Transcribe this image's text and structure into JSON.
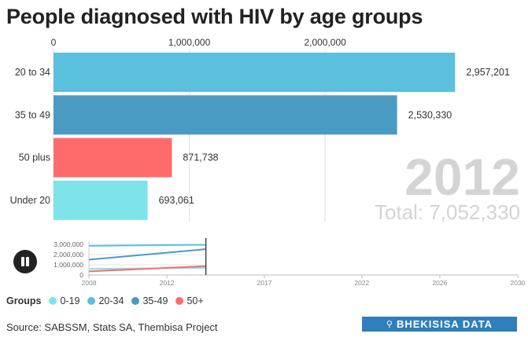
{
  "title": "People diagnosed with HIV by age groups",
  "chart_data": [
    {
      "type": "bar",
      "orientation": "horizontal",
      "year": "2012",
      "total_label": "Total: 7,052,330",
      "categories": [
        "20 to 34",
        "35 to 49",
        "50 plus",
        "Under 20"
      ],
      "values": [
        2957201,
        2530330,
        871738,
        693061
      ],
      "value_labels": [
        "2,957,201",
        "2,530,330",
        "871,738",
        "693,061"
      ],
      "colors": [
        "#5bc0de",
        "#4a9bc4",
        "#ff6b6b",
        "#7fe3ea"
      ],
      "xlim": [
        0,
        3000000
      ],
      "xticks": [
        0,
        1000000,
        2000000
      ],
      "xtick_labels": [
        "0",
        "1,000,000",
        "2,000,000"
      ],
      "axis_position": "top",
      "grid": true
    },
    {
      "type": "line",
      "role": "timeline",
      "x_ticks": [
        2008,
        2012,
        2017,
        2022,
        2026,
        2030
      ],
      "x_tick_labels": [
        "2008",
        "2012",
        "2017",
        "2022",
        "2026",
        "2030"
      ],
      "y_ticks": [
        0,
        1000000,
        2000000,
        3000000
      ],
      "y_tick_labels": [
        "0",
        "1,000,000",
        "2,000,000",
        "3,000,000"
      ],
      "xlim": [
        2008,
        2030
      ],
      "ylim": [
        0,
        3000000
      ],
      "current_year": 2014,
      "series": [
        {
          "name": "0-19",
          "color": "#7fe3ea",
          "points": [
            [
              2008,
              600000
            ],
            [
              2014,
              700000
            ]
          ]
        },
        {
          "name": "20-34",
          "color": "#5bc0de",
          "points": [
            [
              2008,
              2850000
            ],
            [
              2014,
              2960000
            ]
          ]
        },
        {
          "name": "35-49",
          "color": "#4a9bc4",
          "points": [
            [
              2008,
              1500000
            ],
            [
              2014,
              2530000
            ]
          ]
        },
        {
          "name": "50+",
          "color": "#ff6b6b",
          "points": [
            [
              2008,
              350000
            ],
            [
              2014,
              870000
            ]
          ]
        }
      ]
    }
  ],
  "legend": {
    "title": "Groups",
    "items": [
      {
        "label": "0-19",
        "color": "#7fe3ea"
      },
      {
        "label": "20-34",
        "color": "#5bc0de"
      },
      {
        "label": "35-49",
        "color": "#4a9bc4"
      },
      {
        "label": "50+",
        "color": "#ff6b6b"
      }
    ]
  },
  "source": "Source: SABSSM, Stats SA, Thembisa Project",
  "brand": {
    "text": "BHEKISISA DATA",
    "icon": "magnifier-icon"
  }
}
